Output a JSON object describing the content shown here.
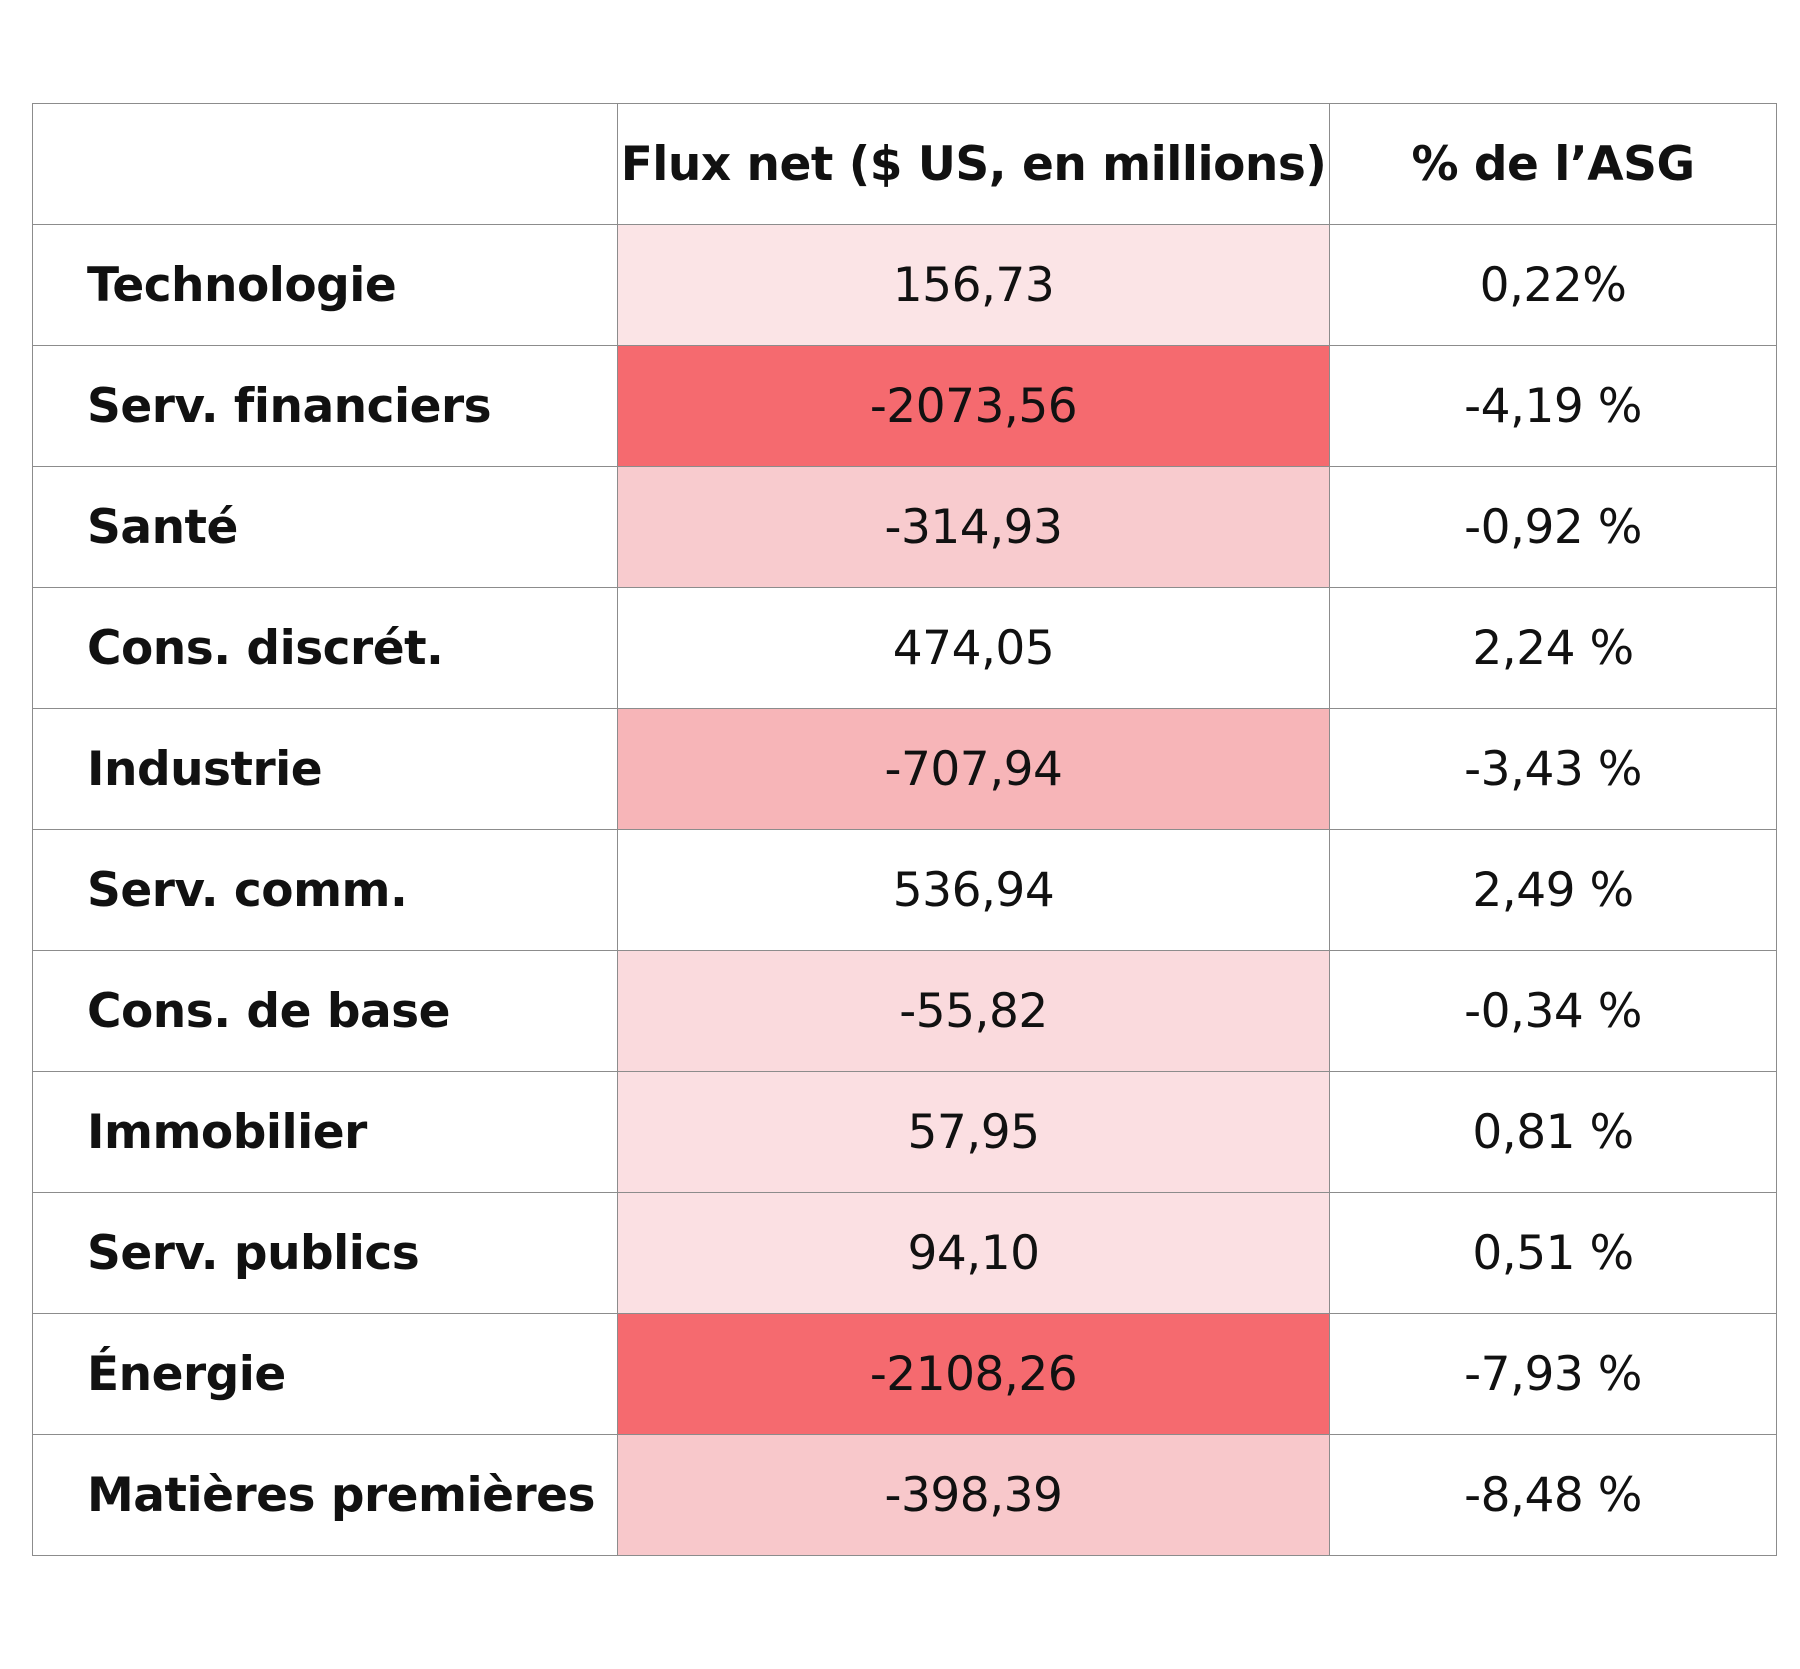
{
  "chart_data": {
    "type": "table",
    "columns": [
      "",
      "Flux net ($ US, en millions)",
      "% de l’ASG"
    ],
    "rows": [
      {
        "sector": "Technologie",
        "net_flow": "156,73",
        "pct": "0,22%",
        "value": 156.73,
        "shade": "#fbe4e6"
      },
      {
        "sector": "Serv. financiers",
        "net_flow": "-2073,56",
        "pct": "-4,19 %",
        "value": -2073.56,
        "shade": "#f56a6f"
      },
      {
        "sector": "Santé",
        "net_flow": "-314,93",
        "pct": "-0,92 %",
        "value": -314.93,
        "shade": "#f8cbce"
      },
      {
        "sector": "Cons. discrét.",
        "net_flow": "474,05",
        "pct": "2,24 %",
        "value": 474.05,
        "shade": "#ffffff"
      },
      {
        "sector": "Industrie",
        "net_flow": "-707,94",
        "pct": "-3,43 %",
        "value": -707.94,
        "shade": "#f7b5b8"
      },
      {
        "sector": "Serv. comm.",
        "net_flow": "536,94",
        "pct": "2,49 %",
        "value": 536.94,
        "shade": "#ffffff"
      },
      {
        "sector": "Cons. de base",
        "net_flow": "-55,82",
        "pct": "-0,34 %",
        "value": -55.82,
        "shade": "#fadadd"
      },
      {
        "sector": "Immobilier",
        "net_flow": "57,95",
        "pct": "0,81 %",
        "value": 57.95,
        "shade": "#fbdfe2"
      },
      {
        "sector": "Serv. publics",
        "net_flow": "94,10",
        "pct": "0,51 %",
        "value": 94.1,
        "shade": "#fbe0e3"
      },
      {
        "sector": "Énergie",
        "net_flow": "-2108,26",
        "pct": "-7,93 %",
        "value": -2108.26,
        "shade": "#f56a6f"
      },
      {
        "sector": "Matières premières",
        "net_flow": "-398,39",
        "pct": "-8,48 %",
        "value": -398.39,
        "shade": "#f8c8cb"
      }
    ]
  }
}
